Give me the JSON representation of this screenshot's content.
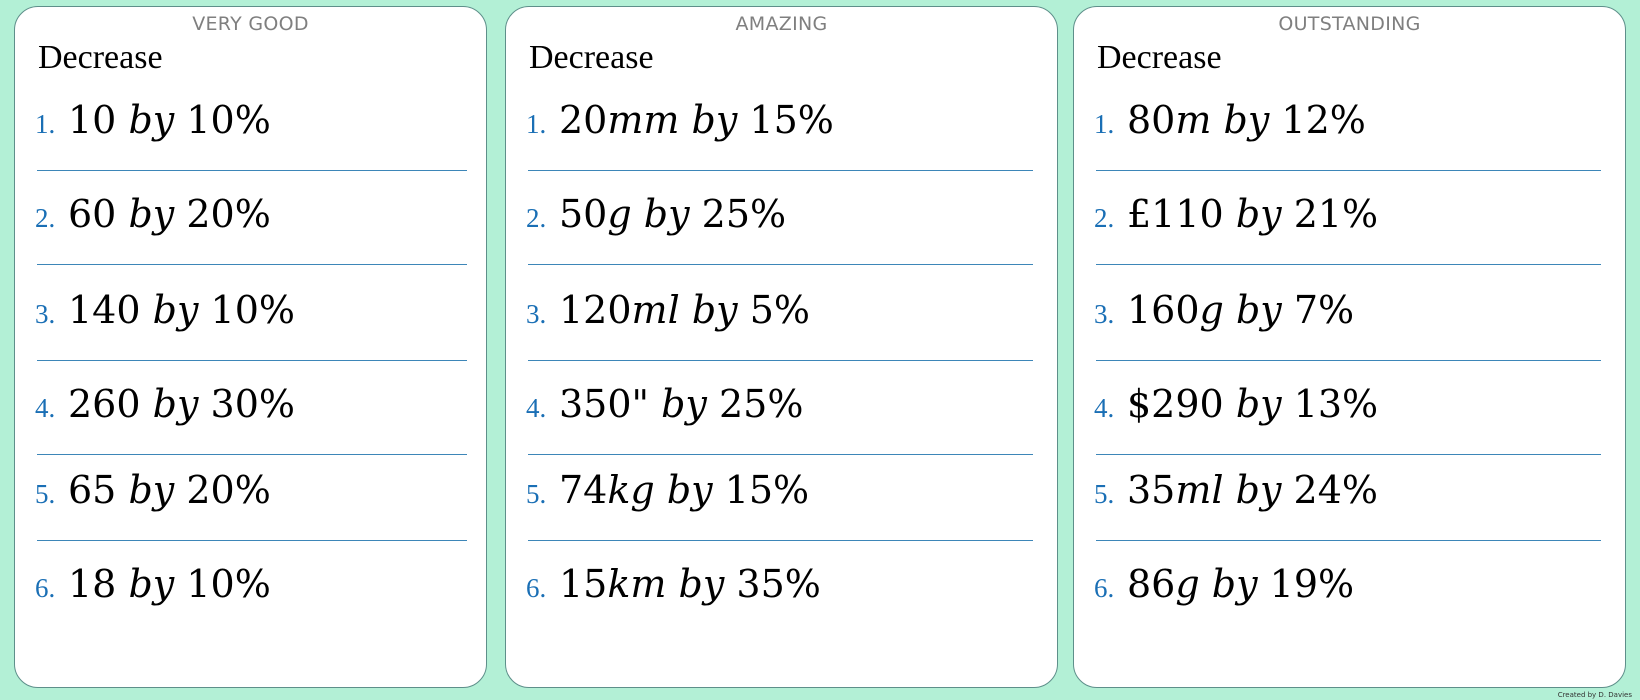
{
  "cards": [
    {
      "title": "VERY GOOD",
      "heading": "Decrease",
      "questions": [
        {
          "num": "1.",
          "amount": "10",
          "unit": "",
          "by": "by",
          "percent": "10%"
        },
        {
          "num": "2.",
          "amount": "60",
          "unit": "",
          "by": "by",
          "percent": "20%"
        },
        {
          "num": "3.",
          "amount": "140",
          "unit": "",
          "by": "by",
          "percent": "10%"
        },
        {
          "num": "4.",
          "amount": "260",
          "unit": "",
          "by": "by",
          "percent": "30%"
        },
        {
          "num": "5.",
          "amount": "65",
          "unit": "",
          "by": "by",
          "percent": "20%"
        },
        {
          "num": "6.",
          "amount": "18",
          "unit": "",
          "by": "by",
          "percent": "10%"
        }
      ]
    },
    {
      "title": "AMAZING",
      "heading": "Decrease",
      "questions": [
        {
          "num": "1.",
          "amount": "20",
          "unit": "mm",
          "by": "by",
          "percent": "15%"
        },
        {
          "num": "2.",
          "amount": "50",
          "unit": "g",
          "by": "by",
          "percent": "25%"
        },
        {
          "num": "3.",
          "amount": "120",
          "unit": "ml",
          "by": "by",
          "percent": "5%"
        },
        {
          "num": "4.",
          "amount": "350\"",
          "unit": "",
          "by": "by",
          "percent": "25%"
        },
        {
          "num": "5.",
          "amount": "74",
          "unit": "kg",
          "by": "by",
          "percent": "15%"
        },
        {
          "num": "6.",
          "amount": "15",
          "unit": "km",
          "by": "by",
          "percent": "35%"
        }
      ]
    },
    {
      "title": "OUTSTANDING",
      "heading": "Decrease",
      "questions": [
        {
          "num": "1.",
          "amount": "80",
          "unit": "m",
          "by": "by",
          "percent": "12%"
        },
        {
          "num": "2.",
          "amount": "£110",
          "unit": "",
          "by": "by",
          "percent": "21%"
        },
        {
          "num": "3.",
          "amount": "160",
          "unit": "g",
          "by": "by",
          "percent": "7%"
        },
        {
          "num": "4.",
          "amount": "$290",
          "unit": "",
          "by": "by",
          "percent": "13%"
        },
        {
          "num": "5.",
          "amount": "35",
          "unit": "ml",
          "by": "by",
          "percent": "24%"
        },
        {
          "num": "6.",
          "amount": "86",
          "unit": "g",
          "by": "by",
          "percent": "19%"
        }
      ]
    }
  ],
  "credit": "Created by D. Davies"
}
